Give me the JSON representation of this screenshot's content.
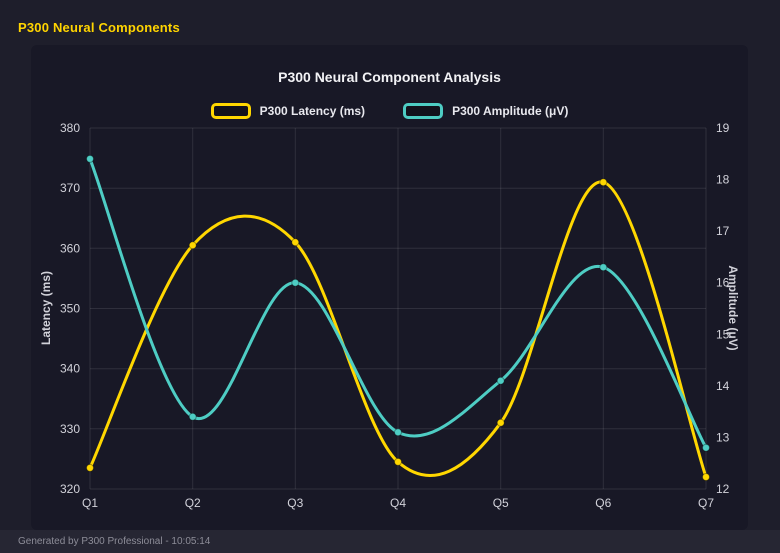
{
  "window": {
    "title": "P300 Neural Components",
    "footer": "Generated by P300 Professional - 10:05:14"
  },
  "chart_data": {
    "type": "line",
    "title": "P300 Neural Component Analysis",
    "categories": [
      "Q1",
      "Q2",
      "Q3",
      "Q4",
      "Q5",
      "Q6",
      "Q7"
    ],
    "series": [
      {
        "name": "P300 Latency (ms)",
        "axis": "left",
        "color": "#FFD700",
        "values": [
          323.5,
          360.5,
          361,
          324.5,
          331,
          371,
          322
        ]
      },
      {
        "name": "P300 Amplitude (μV)",
        "axis": "right",
        "color": "#4ECDC4",
        "values": [
          18.4,
          13.4,
          16.0,
          13.1,
          14.1,
          16.3,
          12.8
        ]
      }
    ],
    "left_axis": {
      "label": "Latency (ms)",
      "min": 320,
      "max": 380,
      "ticks": [
        320,
        330,
        340,
        350,
        360,
        370,
        380
      ]
    },
    "right_axis": {
      "label": "Amplitude (μV)",
      "min": 12,
      "max": 19,
      "ticks": [
        12,
        13,
        14,
        15,
        16,
        17,
        18,
        19
      ]
    },
    "grid": true,
    "legend_position": "top",
    "line_style": "smooth",
    "grid_color": "rgba(255,255,255,0.10)"
  }
}
